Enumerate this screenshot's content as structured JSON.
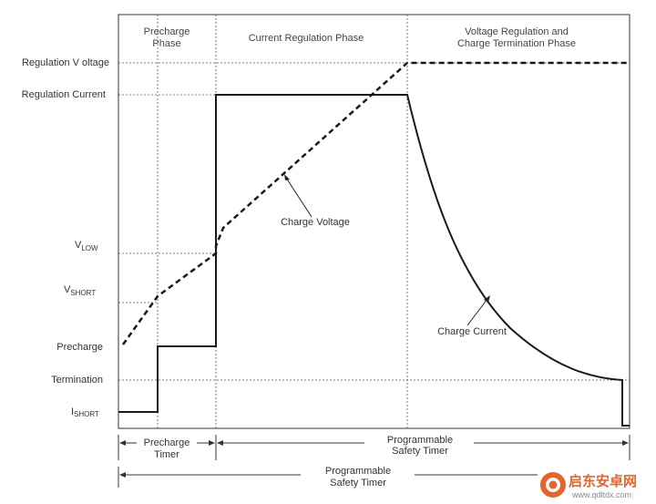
{
  "phases": {
    "precharge_line1": "Precharge",
    "precharge_line2": "Phase",
    "current_reg": "Current Regulation Phase",
    "voltage_reg_line1": "Voltage Regulation and",
    "voltage_reg_line2": "Charge Termination Phase"
  },
  "y_labels": {
    "regulation_voltage": "Regulation V oltage",
    "regulation_current": "Regulation Current",
    "vlow_main": "V",
    "vlow_sub": "LOW",
    "vshort_main": "V",
    "vshort_sub": "SHORT",
    "precharge": "Precharge",
    "termination": "Termination",
    "ishort_main": "I",
    "ishort_sub": "SHORT"
  },
  "annotations": {
    "charge_voltage": "Charge Voltage",
    "charge_current": "Charge Current"
  },
  "timers": {
    "precharge_line1": "Precharge",
    "precharge_line2": "Timer",
    "safety1_line1": "Programmable",
    "safety1_line2": "Safety Timer",
    "safety2_line1": "Programmable",
    "safety2_line2": "Safety Timer"
  },
  "watermark": {
    "text_cn": "启东安卓网",
    "url": "www.qdltdx.com"
  },
  "colors": {
    "line": "#1a1a1a",
    "grid": "#555555",
    "text": "#333333",
    "watermark_orange": "#e8632b"
  }
}
